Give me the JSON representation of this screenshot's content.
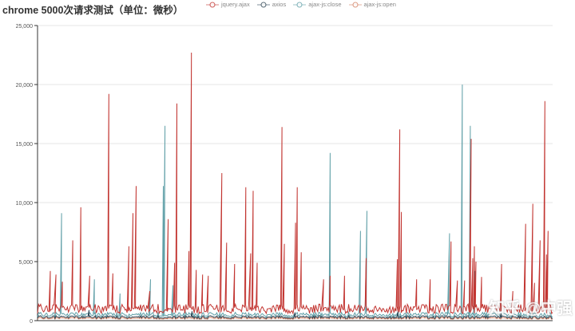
{
  "chart_data": {
    "type": "line",
    "title": "chrome 5000次请求测试（单位：微秒）",
    "xlim": [
      0,
      5000
    ],
    "ylim": [
      0,
      25000
    ],
    "yticks": [
      "0",
      "5,000",
      "10,000",
      "15,000",
      "20,000",
      "25,000"
    ],
    "grid": true,
    "legend_placement": "top-center",
    "series": [
      {
        "name": "jquery.ajax",
        "color": "#c23531",
        "baseline": 1000,
        "spikes": [
          [
            124,
            4200
          ],
          [
            179,
            3900
          ],
          [
            241,
            3300
          ],
          [
            342,
            6800
          ],
          [
            420,
            9600
          ],
          [
            506,
            3800
          ],
          [
            692,
            19200
          ],
          [
            731,
            4000
          ],
          [
            887,
            6300
          ],
          [
            926,
            9100
          ],
          [
            957,
            11400
          ],
          [
            1089,
            2500
          ],
          [
            1268,
            8600
          ],
          [
            1330,
            4900
          ],
          [
            1353,
            18400
          ],
          [
            1470,
            5900
          ],
          [
            1494,
            22700
          ],
          [
            1540,
            4300
          ],
          [
            1602,
            3900
          ],
          [
            1657,
            3800
          ],
          [
            1789,
            12500
          ],
          [
            1836,
            6600
          ],
          [
            1913,
            4800
          ],
          [
            2022,
            11300
          ],
          [
            2069,
            5700
          ],
          [
            2093,
            11000
          ],
          [
            2132,
            4900
          ],
          [
            2373,
            16400
          ],
          [
            2396,
            6500
          ],
          [
            2505,
            8300
          ],
          [
            2521,
            11300
          ],
          [
            2560,
            5800
          ],
          [
            2777,
            3500
          ],
          [
            2840,
            3800
          ],
          [
            2980,
            3800
          ],
          [
            3190,
            5300
          ],
          [
            3493,
            5200
          ],
          [
            3516,
            16200
          ],
          [
            3532,
            9200
          ],
          [
            3680,
            3500
          ],
          [
            3812,
            3500
          ],
          [
            4014,
            6700
          ],
          [
            4076,
            3400
          ],
          [
            4146,
            3400
          ],
          [
            4209,
            15400
          ],
          [
            4225,
            5300
          ],
          [
            4240,
            6300
          ],
          [
            4256,
            5000
          ],
          [
            4310,
            3700
          ],
          [
            4505,
            4800
          ],
          [
            4614,
            2500
          ],
          [
            4738,
            8200
          ],
          [
            4808,
            9900
          ],
          [
            4824,
            3200
          ],
          [
            4878,
            6800
          ],
          [
            4925,
            18600
          ],
          [
            4940,
            5600
          ],
          [
            4956,
            7600
          ]
        ]
      },
      {
        "name": "axios",
        "color": "#2f4554",
        "baseline": 300,
        "spikes": [
          [
            500,
            900
          ],
          [
            1500,
            800
          ],
          [
            2500,
            700
          ],
          [
            3500,
            800
          ],
          [
            4500,
            700
          ]
        ]
      },
      {
        "name": "ajax-js:close",
        "color": "#61a0a8",
        "baseline": 500,
        "spikes": [
          [
            233,
            9100
          ],
          [
            552,
            3500
          ],
          [
            801,
            2300
          ],
          [
            1097,
            3500
          ],
          [
            1221,
            11400
          ],
          [
            1237,
            16500
          ],
          [
            1315,
            3000
          ],
          [
            2840,
            14200
          ],
          [
            3135,
            7600
          ],
          [
            3198,
            9300
          ],
          [
            3999,
            7400
          ],
          [
            4123,
            20000
          ],
          [
            4201,
            16500
          ],
          [
            4248,
            4200
          ]
        ]
      },
      {
        "name": "ajax-js:open",
        "color": "#d48265",
        "baseline": 200,
        "spikes": []
      }
    ]
  },
  "watermark": "知乎 @中强"
}
